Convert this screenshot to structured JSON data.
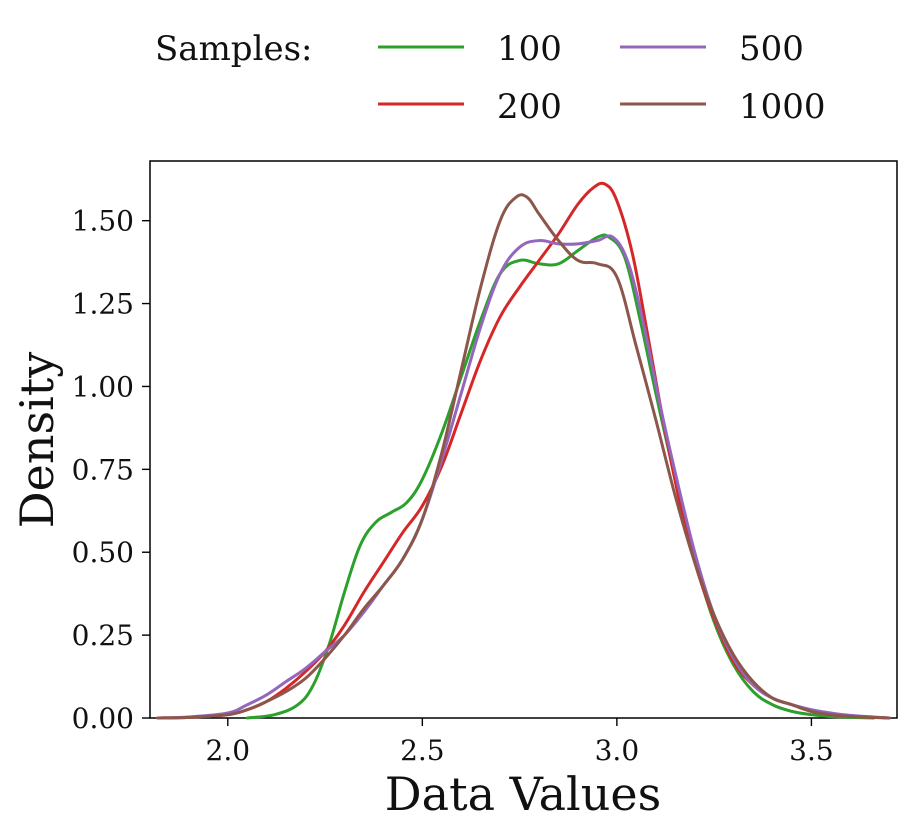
{
  "chart_data": {
    "type": "line",
    "title": "",
    "xlabel": "Data Values",
    "ylabel": "Density",
    "xlim": [
      1.8,
      3.72
    ],
    "ylim": [
      0,
      1.68
    ],
    "xticks": [
      2.0,
      2.5,
      3.0,
      3.5
    ],
    "xtick_labels": [
      "2.0",
      "2.5",
      "3.0",
      "3.5"
    ],
    "yticks": [
      0,
      0.25,
      0.5,
      0.75,
      1.0,
      1.25,
      1.5
    ],
    "ytick_labels": [
      "0.00",
      "0.25",
      "0.50",
      "0.75",
      "1.00",
      "1.25",
      "1.50"
    ],
    "grid": false,
    "legend": {
      "title": "Samples:",
      "placement": "top-center"
    },
    "series": [
      {
        "name": "100",
        "color": "#2ca02c",
        "x": [
          2.05,
          2.12,
          2.18,
          2.22,
          2.26,
          2.3,
          2.34,
          2.38,
          2.42,
          2.46,
          2.5,
          2.55,
          2.6,
          2.65,
          2.7,
          2.75,
          2.8,
          2.85,
          2.9,
          2.95,
          2.98,
          3.02,
          3.06,
          3.1,
          3.15,
          3.2,
          3.25,
          3.3,
          3.35,
          3.4,
          3.45,
          3.5,
          3.55,
          3.6,
          3.66
        ],
        "y": [
          0.0,
          0.01,
          0.04,
          0.1,
          0.22,
          0.38,
          0.52,
          0.59,
          0.62,
          0.65,
          0.72,
          0.86,
          1.03,
          1.2,
          1.34,
          1.38,
          1.37,
          1.37,
          1.41,
          1.45,
          1.45,
          1.39,
          1.2,
          0.98,
          0.72,
          0.48,
          0.29,
          0.16,
          0.08,
          0.04,
          0.02,
          0.01,
          0.004,
          0.002,
          0.0
        ]
      },
      {
        "name": "200",
        "color": "#d62728",
        "x": [
          1.82,
          1.9,
          2.0,
          2.05,
          2.1,
          2.15,
          2.2,
          2.25,
          2.3,
          2.35,
          2.4,
          2.45,
          2.5,
          2.55,
          2.6,
          2.65,
          2.7,
          2.75,
          2.8,
          2.85,
          2.9,
          2.94,
          2.97,
          3.0,
          3.04,
          3.08,
          3.12,
          3.16,
          3.2,
          3.25,
          3.3,
          3.35,
          3.4,
          3.45,
          3.5,
          3.55,
          3.6,
          3.7
        ],
        "y": [
          0.0,
          0.002,
          0.01,
          0.025,
          0.05,
          0.09,
          0.14,
          0.2,
          0.28,
          0.38,
          0.47,
          0.56,
          0.64,
          0.76,
          0.92,
          1.08,
          1.21,
          1.3,
          1.38,
          1.46,
          1.55,
          1.6,
          1.61,
          1.56,
          1.4,
          1.15,
          0.89,
          0.66,
          0.47,
          0.3,
          0.17,
          0.1,
          0.06,
          0.04,
          0.02,
          0.01,
          0.005,
          0.0
        ]
      },
      {
        "name": "500",
        "color": "#9467bd",
        "x": [
          1.82,
          1.9,
          2.0,
          2.05,
          2.1,
          2.15,
          2.2,
          2.25,
          2.3,
          2.35,
          2.4,
          2.45,
          2.5,
          2.55,
          2.6,
          2.65,
          2.7,
          2.75,
          2.8,
          2.85,
          2.9,
          2.95,
          2.99,
          3.03,
          3.07,
          3.11,
          3.15,
          3.2,
          3.25,
          3.3,
          3.35,
          3.4,
          3.45,
          3.5,
          3.55,
          3.6,
          3.7
        ],
        "y": [
          0.0,
          0.003,
          0.015,
          0.04,
          0.07,
          0.11,
          0.15,
          0.2,
          0.25,
          0.32,
          0.4,
          0.48,
          0.6,
          0.78,
          0.98,
          1.18,
          1.34,
          1.42,
          1.44,
          1.43,
          1.43,
          1.44,
          1.45,
          1.37,
          1.18,
          0.95,
          0.74,
          0.5,
          0.31,
          0.18,
          0.1,
          0.06,
          0.04,
          0.025,
          0.015,
          0.008,
          0.0
        ]
      },
      {
        "name": "1000",
        "color": "#8c564b",
        "x": [
          1.82,
          1.9,
          2.0,
          2.05,
          2.1,
          2.15,
          2.2,
          2.25,
          2.3,
          2.35,
          2.4,
          2.45,
          2.5,
          2.55,
          2.6,
          2.65,
          2.7,
          2.74,
          2.77,
          2.8,
          2.85,
          2.9,
          2.95,
          3.0,
          3.05,
          3.1,
          3.15,
          3.2,
          3.25,
          3.3,
          3.35,
          3.4,
          3.45,
          3.5,
          3.55,
          3.6,
          3.7
        ],
        "y": [
          0.0,
          0.002,
          0.01,
          0.025,
          0.05,
          0.08,
          0.12,
          0.18,
          0.25,
          0.33,
          0.4,
          0.48,
          0.6,
          0.8,
          1.05,
          1.3,
          1.5,
          1.57,
          1.57,
          1.52,
          1.44,
          1.38,
          1.37,
          1.33,
          1.12,
          0.9,
          0.67,
          0.47,
          0.31,
          0.19,
          0.11,
          0.06,
          0.04,
          0.02,
          0.01,
          0.005,
          0.0
        ]
      }
    ]
  }
}
